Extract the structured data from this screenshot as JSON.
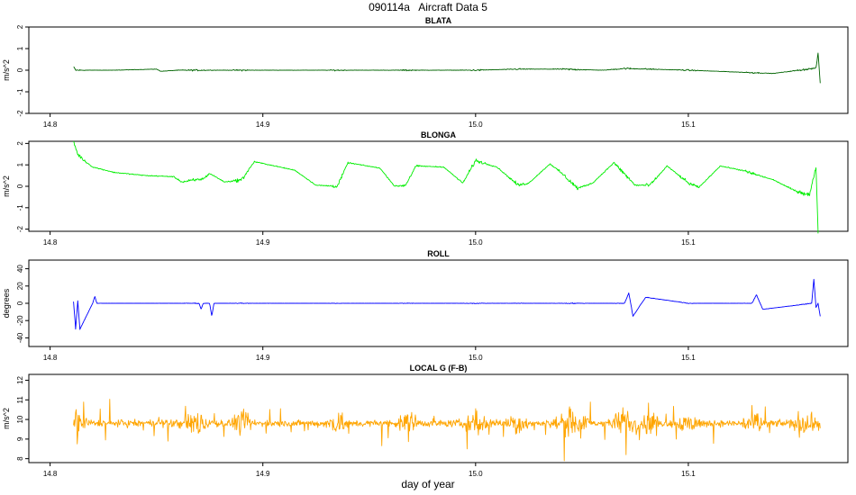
{
  "page": {
    "title": "090114a   Aircraft Data 5",
    "xlabel": "day of year"
  },
  "chart_data": [
    {
      "type": "line",
      "title": "BLATA",
      "ylabel": "m/s^2",
      "color": "#006400",
      "xlim": [
        14.79,
        15.175
      ],
      "ylim": [
        -2,
        2
      ],
      "x_ticks": [
        14.8,
        14.9,
        15.0,
        15.1
      ],
      "x_tick_labels": [
        "14.8",
        "14.9",
        "15.0",
        "15.1"
      ],
      "y_ticks": [
        -2,
        -1,
        0,
        1,
        2
      ],
      "y_tick_labels": [
        "-2",
        "-1",
        "0",
        "1",
        "2"
      ],
      "x_range": [
        14.811,
        15.162
      ],
      "series": [
        {
          "x": [
            14.811,
            14.812,
            14.815,
            14.83,
            14.85,
            14.852,
            14.86,
            14.9,
            14.95,
            15.0,
            15.02,
            15.04,
            15.06,
            15.07,
            15.1,
            15.14,
            15.16,
            15.161,
            15.162
          ],
          "y": [
            0.15,
            0.0,
            0.0,
            0.0,
            0.05,
            -0.05,
            0.0,
            0.0,
            0.0,
            0.0,
            0.05,
            0.05,
            0.0,
            0.08,
            0.0,
            -0.15,
            0.1,
            0.8,
            -0.6
          ]
        }
      ]
    },
    {
      "type": "line",
      "title": "BLONGA",
      "ylabel": "m/s^2",
      "color": "#00ee00",
      "xlim": [
        14.79,
        15.175
      ],
      "ylim": [
        -2.1,
        2.1
      ],
      "x_ticks": [
        14.8,
        14.9,
        15.0,
        15.1
      ],
      "x_tick_labels": [
        "14.8",
        "14.9",
        "15.0",
        "15.1"
      ],
      "y_ticks": [
        -2,
        -1,
        0,
        1,
        2
      ],
      "y_tick_labels": [
        "-2",
        "-1",
        "0",
        "1",
        "2"
      ],
      "series": [
        {
          "x": [
            14.811,
            14.813,
            14.816,
            14.82,
            14.83,
            14.845,
            14.858,
            14.862,
            14.872,
            14.875,
            14.882,
            14.89,
            14.896,
            14.915,
            14.925,
            14.935,
            14.94,
            14.955,
            14.962,
            14.967,
            14.972,
            14.985,
            14.994,
            15.0,
            15.01,
            15.02,
            15.025,
            15.035,
            15.04,
            15.048,
            15.055,
            15.065,
            15.075,
            15.082,
            15.09,
            15.1,
            15.105,
            15.115,
            15.125,
            15.14,
            15.15,
            15.157,
            15.16,
            15.161
          ],
          "y": [
            2.1,
            1.5,
            1.2,
            0.9,
            0.65,
            0.5,
            0.45,
            0.2,
            0.35,
            0.6,
            0.2,
            0.3,
            1.15,
            0.75,
            0.05,
            0.0,
            1.1,
            0.85,
            0.0,
            0.05,
            0.95,
            0.9,
            0.15,
            1.2,
            0.9,
            0.05,
            0.15,
            1.05,
            0.65,
            -0.1,
            0.15,
            1.1,
            0.05,
            0.05,
            0.95,
            0.15,
            -0.05,
            0.95,
            0.75,
            0.3,
            -0.2,
            -0.4,
            0.9,
            -2.2
          ]
        }
      ]
    },
    {
      "type": "line",
      "title": "ROLL",
      "ylabel": "degrees",
      "color": "#0000ff",
      "xlim": [
        14.79,
        15.175
      ],
      "ylim": [
        -50,
        50
      ],
      "x_ticks": [
        14.8,
        14.9,
        15.0,
        15.1
      ],
      "x_tick_labels": [
        "14.8",
        "14.9",
        "15.0",
        "15.1"
      ],
      "y_ticks": [
        -40,
        -20,
        0,
        20,
        40
      ],
      "y_tick_labels": [
        "-40",
        "-20",
        "0",
        "20",
        "40"
      ],
      "series": [
        {
          "x": [
            14.811,
            14.812,
            14.813,
            14.814,
            14.82,
            14.821,
            14.822,
            14.87,
            14.871,
            14.872,
            14.875,
            14.876,
            14.877,
            14.9,
            15.0,
            15.07,
            15.072,
            15.074,
            15.078,
            15.08,
            15.1,
            15.13,
            15.132,
            15.135,
            15.158,
            15.159,
            15.16,
            15.161,
            15.162
          ],
          "y": [
            2,
            -30,
            3,
            -30,
            0,
            8,
            0,
            0,
            -7,
            0,
            0,
            -15,
            0,
            0,
            0,
            0,
            12,
            -15,
            0,
            7,
            0,
            0,
            10,
            -7,
            0,
            28,
            -5,
            0,
            -15
          ]
        }
      ]
    },
    {
      "type": "line",
      "title": "LOCAL G (F-B)",
      "ylabel": "m/s^2",
      "color": "#ffa500",
      "xlim": [
        14.79,
        15.175
      ],
      "ylim": [
        7.8,
        12.3
      ],
      "x_ticks": [
        14.8,
        14.9,
        15.0,
        15.1
      ],
      "x_tick_labels": [
        "14.8",
        "14.9",
        "15.0",
        "15.1"
      ],
      "y_ticks": [
        8,
        9,
        10,
        11,
        12
      ],
      "y_tick_labels": [
        "8",
        "9",
        "10",
        "11",
        "12"
      ],
      "series": [
        {
          "x": [
            14.811,
            14.812,
            14.82,
            14.87,
            14.9,
            15.0,
            15.1,
            15.155,
            15.162
          ],
          "y": [
            9.8,
            11.9,
            9.8,
            9.8,
            9.8,
            9.8,
            9.8,
            8.0,
            9.8
          ]
        }
      ]
    }
  ]
}
